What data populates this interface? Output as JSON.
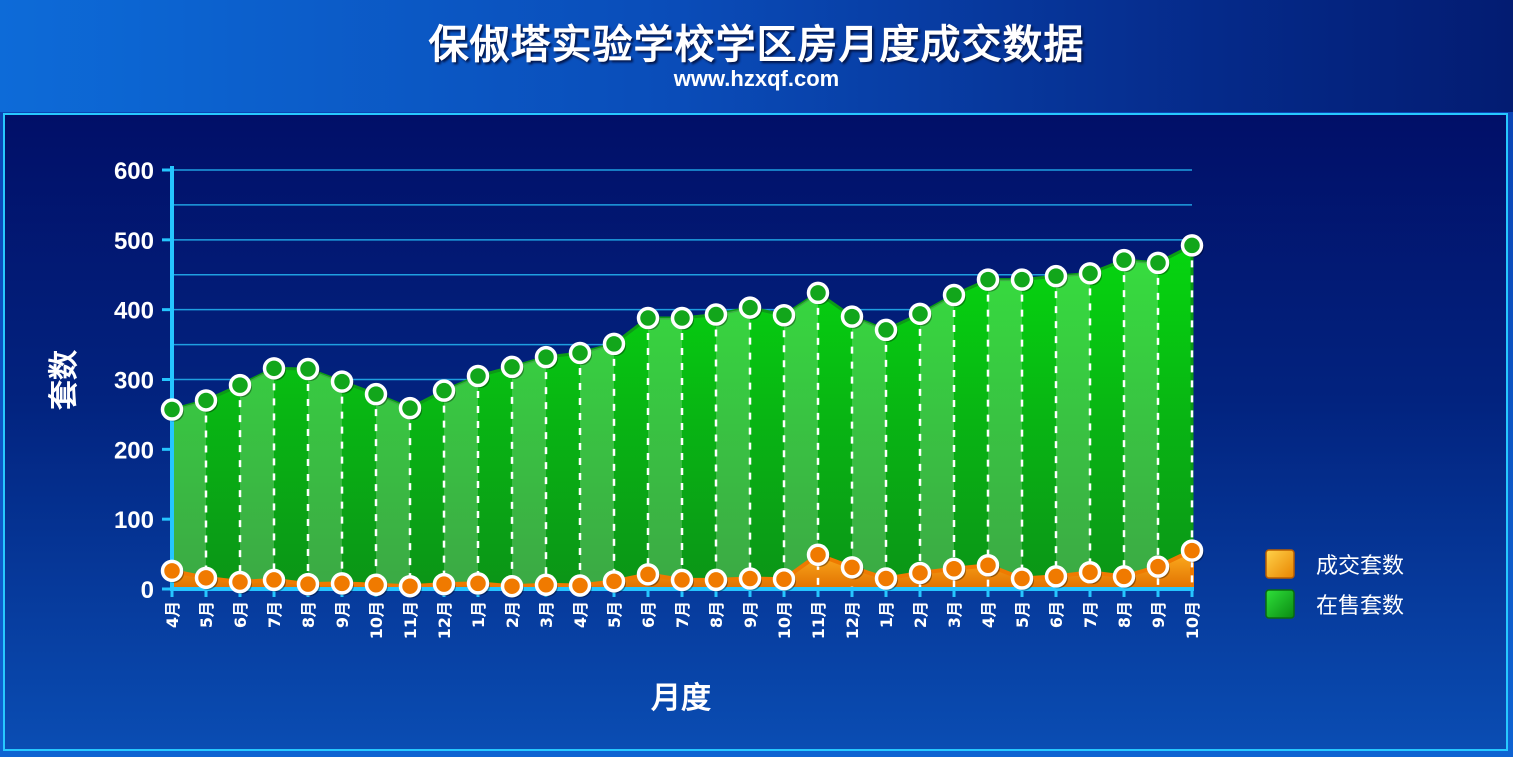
{
  "chart_data": {
    "type": "area",
    "title": "保俶塔实验学校学区房月度成交数据",
    "subtitle": "www.hzxqf.com",
    "xlabel": "月度",
    "ylabel": "套数",
    "ylim": [
      0,
      600
    ],
    "yticks": [
      "0",
      "100",
      "200",
      "300",
      "400",
      "500",
      "600"
    ],
    "categories": [
      "4月",
      "5月",
      "6月",
      "7月",
      "8月",
      "9月",
      "10月",
      "11月",
      "12月",
      "1月",
      "2月",
      "3月",
      "4月",
      "5月",
      "6月",
      "7月",
      "8月",
      "9月",
      "10月",
      "11月",
      "12月",
      "1月",
      "2月",
      "3月",
      "4月",
      "5月",
      "6月",
      "7月",
      "8月",
      "9月",
      "10月"
    ],
    "series": [
      {
        "name": "成交套数",
        "color": "#f08a10",
        "values": [
          26,
          16,
          10,
          13,
          7,
          8,
          6,
          4,
          7,
          8,
          4,
          6,
          5,
          11,
          21,
          13,
          13,
          15,
          14,
          49,
          31,
          15,
          23,
          29,
          34,
          15,
          18,
          24,
          18,
          32,
          55
        ]
      },
      {
        "name": "在售套数",
        "color": "#16b81c",
        "values": [
          257,
          270,
          292,
          316,
          315,
          297,
          279,
          259,
          284,
          305,
          318,
          332,
          338,
          351,
          388,
          388,
          393,
          403,
          392,
          424,
          390,
          371,
          394,
          421,
          443,
          443,
          448,
          452,
          471,
          467,
          492
        ]
      }
    ],
    "grid": true,
    "legend": "right"
  }
}
